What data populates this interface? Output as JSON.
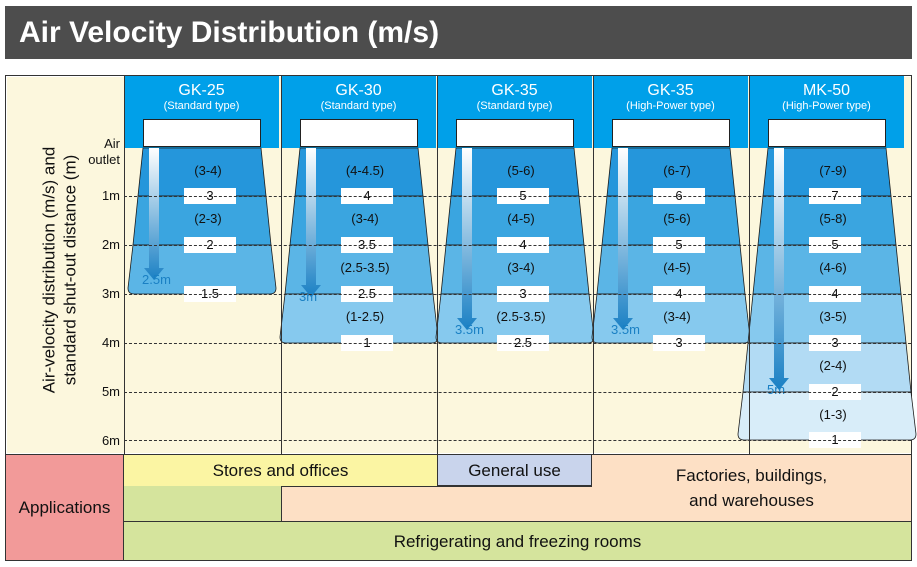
{
  "title": "Air Velocity Distribution (m/s)",
  "axis_title_line1": "Air-velocity distribution (m/s) and",
  "axis_title_line2": "standard shut-out distance (m)",
  "rows": {
    "outlet_line1": "Air",
    "outlet_line2": "outlet",
    "m1": "1m",
    "m2": "2m",
    "m3": "3m",
    "m4": "4m",
    "m5": "5m",
    "m6": "6m"
  },
  "colors": {
    "title_bg": "#4d4d4d",
    "header_blue": "#00a0e9",
    "chart_bg": "#fcf7dd",
    "stores": "#fbf5a3",
    "general": "#c9d4ec",
    "factories": "#fde0c5",
    "refrigerating": "#d5e49d",
    "applications": "#f29a99",
    "arrow": "#1a80c4"
  },
  "columns": [
    {
      "model": "GK-25",
      "type": "(Standard type)",
      "tiers": [
        {
          "range": "(3-4)",
          "value": "3"
        },
        {
          "range": "(2-3)",
          "value": "2"
        },
        {
          "range": "",
          "value": "1.5"
        }
      ],
      "distance": "2.5m"
    },
    {
      "model": "GK-30",
      "type": "(Standard type)",
      "tiers": [
        {
          "range": "(4-4.5)",
          "value": "4"
        },
        {
          "range": "(3-4)",
          "value": "3.5"
        },
        {
          "range": "(2.5-3.5)",
          "value": "2.5"
        },
        {
          "range": "(1-2.5)",
          "value": "1"
        }
      ],
      "distance": "3m"
    },
    {
      "model": "GK-35",
      "type": "(Standard type)",
      "tiers": [
        {
          "range": "(5-6)",
          "value": "5"
        },
        {
          "range": "(4-5)",
          "value": "4"
        },
        {
          "range": "(3-4)",
          "value": "3"
        },
        {
          "range": "(2.5-3.5)",
          "value": "2.5"
        }
      ],
      "distance": "3.5m"
    },
    {
      "model": "GK-35",
      "type": "(High-Power type)",
      "tiers": [
        {
          "range": "(6-7)",
          "value": "6"
        },
        {
          "range": "(5-6)",
          "value": "5"
        },
        {
          "range": "(4-5)",
          "value": "4"
        },
        {
          "range": "(3-4)",
          "value": "3"
        }
      ],
      "distance": "3.5m"
    },
    {
      "model": "MK-50",
      "type": "(High-Power type)",
      "tiers": [
        {
          "range": "(7-9)",
          "value": "7"
        },
        {
          "range": "(5-8)",
          "value": "5"
        },
        {
          "range": "(4-6)",
          "value": "4"
        },
        {
          "range": "(3-5)",
          "value": "3"
        },
        {
          "range": "(2-4)",
          "value": "2"
        },
        {
          "range": "(1-3)",
          "value": "1"
        }
      ],
      "distance": "5m"
    }
  ],
  "applications": {
    "label": "Applications",
    "stores": "Stores and offices",
    "general": "General use",
    "factories_line1": "Factories, buildings,",
    "factories_line2": "and warehouses",
    "refrigerating": "Refrigerating and freezing rooms"
  }
}
